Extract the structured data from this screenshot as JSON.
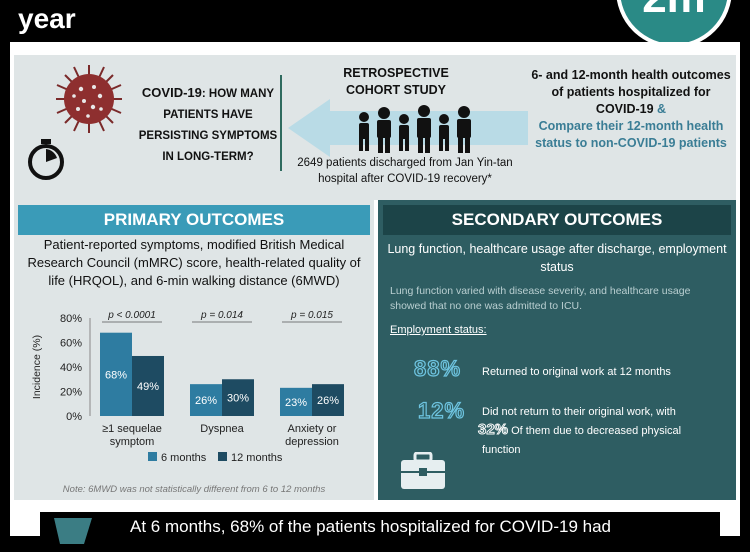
{
  "header": {
    "title": "year",
    "logo_text": "2m"
  },
  "question": {
    "lead": "COVID-19",
    "lead_rest": ": HOW MANY PATIENTS HAVE PERSISTING SYMPTOMS IN LONG-TERM?"
  },
  "study": {
    "title_line1": "RETROSPECTIVE",
    "title_line2": "COHORT STUDY",
    "patients_note": "2649 patients discharged from Jan Yin-tan hospital after COVID-19 recovery*"
  },
  "aims": {
    "line1": "6- and 12-month health outcomes of patients hospitalized for COVID-19",
    "amp": " &",
    "line2": "Compare their 12-month health status to non-COVID-19 patients"
  },
  "primary": {
    "heading": "PRIMARY OUTCOMES",
    "description": "Patient-reported symptoms, modified British Medical Research Council (mMRC) score, health-related quality of life (HRQOL), and 6-min walking distance (6MWD)",
    "footnote": "Note: 6MWD was not statistically different from 6 to 12 months"
  },
  "chart_data": {
    "type": "bar",
    "ylabel": "Incidence (%)",
    "ylim": [
      0,
      80
    ],
    "yticks": [
      "0%",
      "20%",
      "40%",
      "60%",
      "80%"
    ],
    "categories": [
      "≥1 sequelae symptom",
      "Dyspnea",
      "Anxiety or depression"
    ],
    "category_lines": [
      [
        "≥1 sequelae",
        "symptom"
      ],
      [
        "Dyspnea"
      ],
      [
        "Anxiety or",
        "depression"
      ]
    ],
    "pvalues": [
      "p < 0.0001",
      "p = 0.014",
      "p = 0.015"
    ],
    "series": [
      {
        "name": "6 months",
        "values": [
          68,
          26,
          23
        ],
        "labels": [
          "68%",
          "26%",
          "23%"
        ],
        "color": "#2e7ca1"
      },
      {
        "name": "12 months",
        "values": [
          49,
          30,
          26
        ],
        "labels": [
          "49%",
          "30%",
          "26%"
        ],
        "color": "#1e4b62"
      }
    ]
  },
  "secondary": {
    "heading": "SECONDARY OUTCOMES",
    "subheading": "Lung function, healthcare usage after discharge, employment status",
    "body": "Lung function varied with disease severity, and healthcare usage showed that no one was admitted to ICU.",
    "employment_label": "Employment status:",
    "stat1_value": "88%",
    "stat1_text": "Returned to original work at 12 months",
    "stat2_value": "12%",
    "stat2_text": "Did not return to their original work, with",
    "stat3_value": "32%",
    "stat3_text_a": " Of them due to decreased physical",
    "stat3_text_b": "function"
  },
  "banner": {
    "text": "At 6 months, 68% of the patients hospitalized for COVID-19 had"
  },
  "colors": {
    "primary_accent": "#3a9bb8",
    "secondary_bg": "#2e5d62",
    "panel_bg": "#dfe5e6"
  }
}
